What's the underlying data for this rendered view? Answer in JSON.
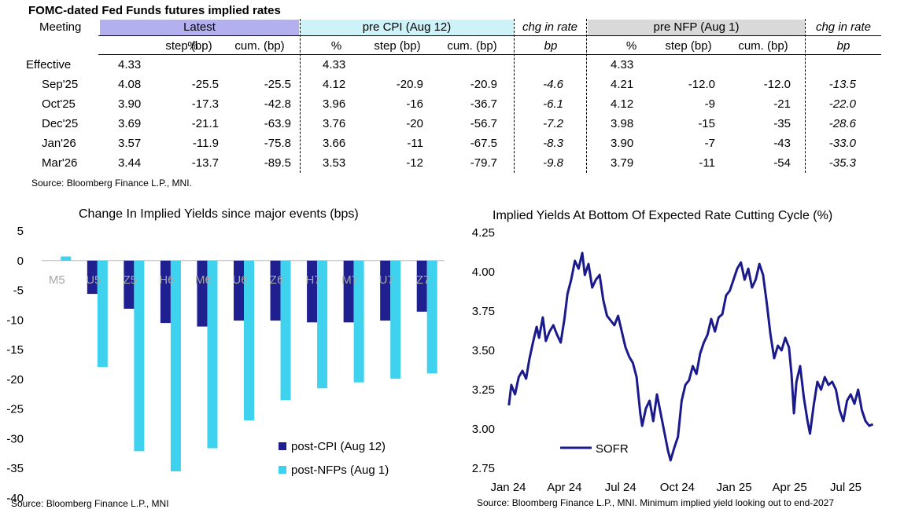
{
  "table": {
    "title": "FOMC-dated Fed Funds futures implied rates",
    "meeting_header": "Meeting",
    "groups": [
      {
        "label": "Latest",
        "color": "#b4b0f0"
      },
      {
        "label": "pre CPI (Aug 12)",
        "color": "#cdf2f8"
      },
      {
        "label": "chg in rate",
        "color": "#ffffff"
      },
      {
        "label": "pre NFP (Aug 1)",
        "color": "#d9d9d9"
      },
      {
        "label": "chg in rate",
        "color": "#ffffff"
      }
    ],
    "subheaders": [
      "%",
      "step (bp)",
      "cum. (bp)",
      "%",
      "step (bp)",
      "cum. (bp)",
      "bp",
      "%",
      "step (bp)",
      "cum. (bp)",
      "bp"
    ],
    "rows": [
      [
        "Effective",
        "4.33",
        "",
        "",
        "4.33",
        "",
        "",
        "",
        "4.33",
        "",
        "",
        ""
      ],
      [
        "Sep'25",
        "4.08",
        "-25.5",
        "-25.5",
        "4.12",
        "-20.9",
        "-20.9",
        "-4.6",
        "4.21",
        "-12.0",
        "-12.0",
        "-13.5"
      ],
      [
        "Oct'25",
        "3.90",
        "-17.3",
        "-42.8",
        "3.96",
        "-16",
        "-36.7",
        "-6.1",
        "4.12",
        "-9",
        "-21",
        "-22.0"
      ],
      [
        "Dec'25",
        "3.69",
        "-21.1",
        "-63.9",
        "3.76",
        "-20",
        "-56.7",
        "-7.2",
        "3.98",
        "-15",
        "-35",
        "-28.6"
      ],
      [
        "Jan'26",
        "3.57",
        "-11.9",
        "-75.8",
        "3.66",
        "-11",
        "-67.5",
        "-8.3",
        "3.90",
        "-7",
        "-43",
        "-33.0"
      ],
      [
        "Mar'26",
        "3.44",
        "-13.7",
        "-89.5",
        "3.53",
        "-12",
        "-79.7",
        "-9.8",
        "3.79",
        "-11",
        "-54",
        "-35.3"
      ]
    ],
    "source": "Source: Bloomberg Finance L.P., MNI."
  },
  "chart_data": [
    {
      "type": "bar",
      "title": "Change In Implied Yields since major events (bps)",
      "categories": [
        "M5",
        "U5",
        "Z5",
        "H6",
        "M6",
        "U6",
        "Z6",
        "H7",
        "M7",
        "U7",
        "Z7"
      ],
      "series": [
        {
          "name": "post-CPI (Aug 12)",
          "color": "#1f1f8f",
          "values": [
            0,
            -5.6,
            -8.1,
            -10.5,
            -11.1,
            -10.1,
            -10.1,
            -10.4,
            -10.4,
            -10.1,
            -8.6
          ]
        },
        {
          "name": "post-NFPs (Aug 1)",
          "color": "#3fd2ee",
          "values": [
            0.7,
            -17.9,
            -32.1,
            -35.5,
            -31.6,
            -26.9,
            -23.5,
            -21.5,
            -20.5,
            -19.9,
            -19.0
          ]
        }
      ],
      "ylim": [
        -40,
        5
      ],
      "yticks": [
        "5",
        "0",
        "-5",
        "-10",
        "-15",
        "-20",
        "-25",
        "-30",
        "-35",
        "-40"
      ],
      "legend": "bottom-right",
      "source": "Source: Bloomberg Finance L.P., MNI"
    },
    {
      "type": "line",
      "title": "Implied Yields At Bottom Of Expected Rate Cutting Cycle (%)",
      "x_ticks": [
        "Jan 24",
        "Apr 24",
        "Jul 24",
        "Oct 24",
        "Jan 25",
        "Apr 25",
        "Jul 25"
      ],
      "yticks": [
        "4.25",
        "4.00",
        "3.75",
        "3.50",
        "3.25",
        "3.00",
        "2.75"
      ],
      "ylim": [
        2.75,
        4.25
      ],
      "series": [
        {
          "name": "SOFR",
          "color": "#1a1a8c",
          "points": [
            [
              "2024-01-02",
              3.15
            ],
            [
              "2024-01-06",
              3.28
            ],
            [
              "2024-01-12",
              3.22
            ],
            [
              "2024-01-18",
              3.33
            ],
            [
              "2024-01-24",
              3.37
            ],
            [
              "2024-01-30",
              3.32
            ],
            [
              "2024-02-04",
              3.44
            ],
            [
              "2024-02-10",
              3.55
            ],
            [
              "2024-02-16",
              3.65
            ],
            [
              "2024-02-20",
              3.58
            ],
            [
              "2024-02-26",
              3.71
            ],
            [
              "2024-03-02",
              3.56
            ],
            [
              "2024-03-08",
              3.62
            ],
            [
              "2024-03-14",
              3.66
            ],
            [
              "2024-03-20",
              3.6
            ],
            [
              "2024-03-26",
              3.55
            ],
            [
              "2024-04-01",
              3.7
            ],
            [
              "2024-04-06",
              3.86
            ],
            [
              "2024-04-12",
              3.95
            ],
            [
              "2024-04-18",
              4.07
            ],
            [
              "2024-04-24",
              4.02
            ],
            [
              "2024-04-30",
              4.12
            ],
            [
              "2024-05-04",
              3.98
            ],
            [
              "2024-05-10",
              4.05
            ],
            [
              "2024-05-16",
              3.9
            ],
            [
              "2024-05-22",
              3.95
            ],
            [
              "2024-05-28",
              3.98
            ],
            [
              "2024-06-03",
              3.82
            ],
            [
              "2024-06-09",
              3.72
            ],
            [
              "2024-06-15",
              3.69
            ],
            [
              "2024-06-21",
              3.66
            ],
            [
              "2024-06-27",
              3.72
            ],
            [
              "2024-07-03",
              3.62
            ],
            [
              "2024-07-09",
              3.52
            ],
            [
              "2024-07-15",
              3.46
            ],
            [
              "2024-07-21",
              3.42
            ],
            [
              "2024-07-27",
              3.33
            ],
            [
              "2024-08-02",
              3.1
            ],
            [
              "2024-08-05",
              3.02
            ],
            [
              "2024-08-11",
              3.13
            ],
            [
              "2024-08-17",
              3.18
            ],
            [
              "2024-08-23",
              3.05
            ],
            [
              "2024-08-29",
              3.22
            ],
            [
              "2024-09-04",
              3.1
            ],
            [
              "2024-09-10",
              2.98
            ],
            [
              "2024-09-16",
              2.86
            ],
            [
              "2024-09-20",
              2.8
            ],
            [
              "2024-09-26",
              2.88
            ],
            [
              "2024-10-02",
              2.95
            ],
            [
              "2024-10-08",
              3.18
            ],
            [
              "2024-10-14",
              3.28
            ],
            [
              "2024-10-20",
              3.31
            ],
            [
              "2024-10-26",
              3.4
            ],
            [
              "2024-11-01",
              3.35
            ],
            [
              "2024-11-07",
              3.48
            ],
            [
              "2024-11-13",
              3.55
            ],
            [
              "2024-11-19",
              3.6
            ],
            [
              "2024-11-25",
              3.7
            ],
            [
              "2024-12-01",
              3.62
            ],
            [
              "2024-12-07",
              3.71
            ],
            [
              "2024-12-13",
              3.73
            ],
            [
              "2024-12-19",
              3.85
            ],
            [
              "2024-12-25",
              3.88
            ],
            [
              "2024-12-31",
              3.95
            ],
            [
              "2025-01-06",
              4.02
            ],
            [
              "2025-01-12",
              4.06
            ],
            [
              "2025-01-18",
              3.95
            ],
            [
              "2025-01-24",
              4.02
            ],
            [
              "2025-01-30",
              3.9
            ],
            [
              "2025-02-05",
              3.95
            ],
            [
              "2025-02-11",
              4.05
            ],
            [
              "2025-02-17",
              3.98
            ],
            [
              "2025-02-23",
              3.8
            ],
            [
              "2025-03-01",
              3.6
            ],
            [
              "2025-03-07",
              3.45
            ],
            [
              "2025-03-13",
              3.53
            ],
            [
              "2025-03-19",
              3.5
            ],
            [
              "2025-03-25",
              3.58
            ],
            [
              "2025-03-31",
              3.52
            ],
            [
              "2025-04-04",
              3.35
            ],
            [
              "2025-04-08",
              3.1
            ],
            [
              "2025-04-12",
              3.3
            ],
            [
              "2025-04-18",
              3.4
            ],
            [
              "2025-04-24",
              3.2
            ],
            [
              "2025-04-30",
              3.05
            ],
            [
              "2025-05-04",
              2.97
            ],
            [
              "2025-05-10",
              3.15
            ],
            [
              "2025-05-16",
              3.3
            ],
            [
              "2025-05-22",
              3.25
            ],
            [
              "2025-05-28",
              3.33
            ],
            [
              "2025-06-03",
              3.28
            ],
            [
              "2025-06-09",
              3.3
            ],
            [
              "2025-06-15",
              3.25
            ],
            [
              "2025-06-21",
              3.12
            ],
            [
              "2025-06-27",
              3.05
            ],
            [
              "2025-07-03",
              3.18
            ],
            [
              "2025-07-09",
              3.22
            ],
            [
              "2025-07-15",
              3.16
            ],
            [
              "2025-07-21",
              3.25
            ],
            [
              "2025-07-27",
              3.12
            ],
            [
              "2025-08-02",
              3.05
            ],
            [
              "2025-08-08",
              3.02
            ],
            [
              "2025-08-14",
              3.03
            ]
          ]
        }
      ],
      "legend": "bottom-left",
      "source": "Source: Bloomberg Finance L.P., MNI. Minimum implied yield looking out to end-2027"
    }
  ]
}
